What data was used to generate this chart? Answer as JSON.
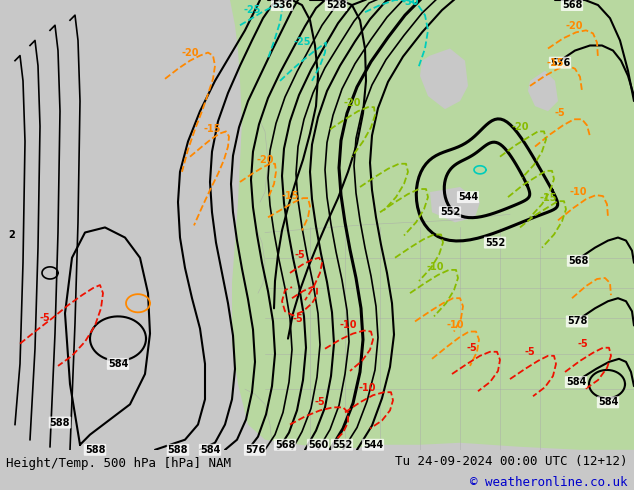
{
  "title_left": "Height/Temp. 500 hPa [hPa] NAM",
  "title_right": "Tu 24-09-2024 00:00 UTC (12+12)",
  "copyright": "© weatheronline.co.uk",
  "bg_color": "#c8c8c8",
  "land_color": "#b8d8a0",
  "ocean_color": "#c8c8c8",
  "border_color": "#aaaaaa",
  "bottom_bar_color": "#e0e0e0",
  "black": "#000000",
  "cyan": "#00ccbb",
  "orange": "#ff8800",
  "red": "#ee1100",
  "ygreen": "#88bb00",
  "figsize": [
    6.34,
    4.9
  ],
  "dpi": 100,
  "bottom_bar_height": 0.082
}
